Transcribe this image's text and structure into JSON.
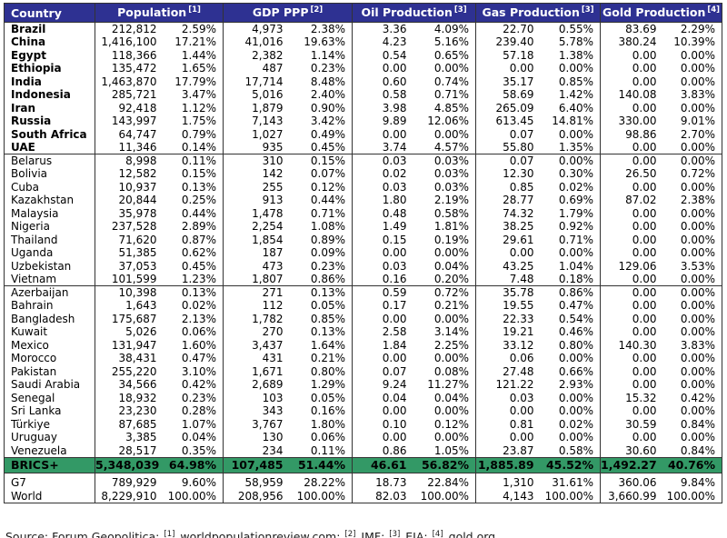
{
  "colors": {
    "header_bg": "#2E3192",
    "header_text": "#FFFFFF",
    "brics_row_bg": "#339966",
    "border": "#333333"
  },
  "chart_data": {
    "type": "table",
    "title": "BRICS+ vs G7 vs World statistics table",
    "columns": [
      {
        "label": "Country",
        "ref": null
      },
      {
        "label": "Population",
        "ref": "[1]"
      },
      {
        "label": "GDP PPP",
        "ref": "[2]"
      },
      {
        "label": "Oil Production",
        "ref": "[3]"
      },
      {
        "label": "Gas Production",
        "ref": "[3]"
      },
      {
        "label": "Gold Production",
        "ref": "[4]"
      }
    ],
    "subcolumns_per_group": [
      "value",
      "percent"
    ],
    "groups": [
      {
        "id": "brics-members",
        "bold_country": true,
        "rows": [
          {
            "country": "Brazil",
            "values": [
              "212,812",
              "2.59%",
              "4,973",
              "2.38%",
              "3.36",
              "4.09%",
              "22.70",
              "0.55%",
              "83.69",
              "2.29%"
            ]
          },
          {
            "country": "China",
            "values": [
              "1,416,100",
              "17.21%",
              "41,016",
              "19.63%",
              "4.23",
              "5.16%",
              "239.40",
              "5.78%",
              "380.24",
              "10.39%"
            ]
          },
          {
            "country": "Egypt",
            "values": [
              "118,366",
              "1.44%",
              "2,382",
              "1.14%",
              "0.54",
              "0.65%",
              "57.18",
              "1.38%",
              "0.00",
              "0.00%"
            ]
          },
          {
            "country": "Ethiopia",
            "values": [
              "135,472",
              "1.65%",
              "487",
              "0.23%",
              "0.00",
              "0.00%",
              "0.00",
              "0.00%",
              "0.00",
              "0.00%"
            ]
          },
          {
            "country": "India",
            "values": [
              "1,463,870",
              "17.79%",
              "17,714",
              "8.48%",
              "0.60",
              "0.74%",
              "35.17",
              "0.85%",
              "0.00",
              "0.00%"
            ]
          },
          {
            "country": "Indonesia",
            "values": [
              "285,721",
              "3.47%",
              "5,016",
              "2.40%",
              "0.58",
              "0.71%",
              "58.69",
              "1.42%",
              "140.08",
              "3.83%"
            ]
          },
          {
            "country": "Iran",
            "values": [
              "92,418",
              "1.12%",
              "1,879",
              "0.90%",
              "3.98",
              "4.85%",
              "265.09",
              "6.40%",
              "0.00",
              "0.00%"
            ]
          },
          {
            "country": "Russia",
            "values": [
              "143,997",
              "1.75%",
              "7,143",
              "3.42%",
              "9.89",
              "12.06%",
              "613.45",
              "14.81%",
              "330.00",
              "9.01%"
            ]
          },
          {
            "country": "South Africa",
            "values": [
              "64,747",
              "0.79%",
              "1,027",
              "0.49%",
              "0.00",
              "0.00%",
              "0.07",
              "0.00%",
              "98.86",
              "2.70%"
            ]
          },
          {
            "country": "UAE",
            "values": [
              "11,346",
              "0.14%",
              "935",
              "0.45%",
              "3.74",
              "4.57%",
              "55.80",
              "1.35%",
              "0.00",
              "0.00%"
            ]
          }
        ]
      },
      {
        "id": "partner-countries",
        "bold_country": false,
        "rows": [
          {
            "country": "Belarus",
            "values": [
              "8,998",
              "0.11%",
              "310",
              "0.15%",
              "0.03",
              "0.03%",
              "0.07",
              "0.00%",
              "0.00",
              "0.00%"
            ]
          },
          {
            "country": "Bolivia",
            "values": [
              "12,582",
              "0.15%",
              "142",
              "0.07%",
              "0.02",
              "0.03%",
              "12.30",
              "0.30%",
              "26.50",
              "0.72%"
            ]
          },
          {
            "country": "Cuba",
            "values": [
              "10,937",
              "0.13%",
              "255",
              "0.12%",
              "0.03",
              "0.03%",
              "0.85",
              "0.02%",
              "0.00",
              "0.00%"
            ]
          },
          {
            "country": "Kazakhstan",
            "values": [
              "20,844",
              "0.25%",
              "913",
              "0.44%",
              "1.80",
              "2.19%",
              "28.77",
              "0.69%",
              "87.02",
              "2.38%"
            ]
          },
          {
            "country": "Malaysia",
            "values": [
              "35,978",
              "0.44%",
              "1,478",
              "0.71%",
              "0.48",
              "0.58%",
              "74.32",
              "1.79%",
              "0.00",
              "0.00%"
            ]
          },
          {
            "country": "Nigeria",
            "values": [
              "237,528",
              "2.89%",
              "2,254",
              "1.08%",
              "1.49",
              "1.81%",
              "38.25",
              "0.92%",
              "0.00",
              "0.00%"
            ]
          },
          {
            "country": "Thailand",
            "values": [
              "71,620",
              "0.87%",
              "1,854",
              "0.89%",
              "0.15",
              "0.19%",
              "29.61",
              "0.71%",
              "0.00",
              "0.00%"
            ]
          },
          {
            "country": "Uganda",
            "values": [
              "51,385",
              "0.62%",
              "187",
              "0.09%",
              "0.00",
              "0.00%",
              "0.00",
              "0.00%",
              "0.00",
              "0.00%"
            ]
          },
          {
            "country": "Uzbekistan",
            "values": [
              "37,053",
              "0.45%",
              "473",
              "0.23%",
              "0.03",
              "0.04%",
              "43.25",
              "1.04%",
              "129.06",
              "3.53%"
            ]
          },
          {
            "country": "Vietnam",
            "values": [
              "101,599",
              "1.23%",
              "1,807",
              "0.86%",
              "0.16",
              "0.20%",
              "7.48",
              "0.18%",
              "0.00",
              "0.00%"
            ]
          }
        ]
      },
      {
        "id": "other-countries",
        "bold_country": false,
        "rows": [
          {
            "country": "Azerbaijan",
            "values": [
              "10,398",
              "0.13%",
              "271",
              "0.13%",
              "0.59",
              "0.72%",
              "35.78",
              "0.86%",
              "0.00",
              "0.00%"
            ]
          },
          {
            "country": "Bahrain",
            "values": [
              "1,643",
              "0.02%",
              "112",
              "0.05%",
              "0.17",
              "0.21%",
              "19.55",
              "0.47%",
              "0.00",
              "0.00%"
            ]
          },
          {
            "country": "Bangladesh",
            "values": [
              "175,687",
              "2.13%",
              "1,782",
              "0.85%",
              "0.00",
              "0.00%",
              "22.33",
              "0.54%",
              "0.00",
              "0.00%"
            ]
          },
          {
            "country": "Kuwait",
            "values": [
              "5,026",
              "0.06%",
              "270",
              "0.13%",
              "2.58",
              "3.14%",
              "19.21",
              "0.46%",
              "0.00",
              "0.00%"
            ]
          },
          {
            "country": "Mexico",
            "values": [
              "131,947",
              "1.60%",
              "3,437",
              "1.64%",
              "1.84",
              "2.25%",
              "33.12",
              "0.80%",
              "140.30",
              "3.83%"
            ]
          },
          {
            "country": "Morocco",
            "values": [
              "38,431",
              "0.47%",
              "431",
              "0.21%",
              "0.00",
              "0.00%",
              "0.06",
              "0.00%",
              "0.00",
              "0.00%"
            ]
          },
          {
            "country": "Pakistan",
            "values": [
              "255,220",
              "3.10%",
              "1,671",
              "0.80%",
              "0.07",
              "0.08%",
              "27.48",
              "0.66%",
              "0.00",
              "0.00%"
            ]
          },
          {
            "country": "Saudi Arabia",
            "values": [
              "34,566",
              "0.42%",
              "2,689",
              "1.29%",
              "9.24",
              "11.27%",
              "121.22",
              "2.93%",
              "0.00",
              "0.00%"
            ]
          },
          {
            "country": "Senegal",
            "values": [
              "18,932",
              "0.23%",
              "103",
              "0.05%",
              "0.04",
              "0.04%",
              "0.03",
              "0.00%",
              "15.32",
              "0.42%"
            ]
          },
          {
            "country": "Sri Lanka",
            "values": [
              "23,230",
              "0.28%",
              "343",
              "0.16%",
              "0.00",
              "0.00%",
              "0.00",
              "0.00%",
              "0.00",
              "0.00%"
            ]
          },
          {
            "country": "Türkiye",
            "values": [
              "87,685",
              "1.07%",
              "3,767",
              "1.80%",
              "0.10",
              "0.12%",
              "0.81",
              "0.02%",
              "30.59",
              "0.84%"
            ]
          },
          {
            "country": "Uruguay",
            "values": [
              "3,385",
              "0.04%",
              "130",
              "0.06%",
              "0.00",
              "0.00%",
              "0.00",
              "0.00%",
              "0.00",
              "0.00%"
            ]
          },
          {
            "country": "Venezuela",
            "values": [
              "28,517",
              "0.35%",
              "234",
              "0.11%",
              "0.86",
              "1.05%",
              "23.87",
              "0.58%",
              "30.60",
              "0.84%"
            ]
          }
        ]
      }
    ],
    "total_row": {
      "country": "BRICS+",
      "values": [
        "5,348,039",
        "64.98%",
        "107,485",
        "51.44%",
        "46.61",
        "56.82%",
        "1,885.89",
        "45.52%",
        "1,492.27",
        "40.76%"
      ]
    },
    "comparison_rows": [
      {
        "country": "G7",
        "values": [
          "789,929",
          "9.60%",
          "58,959",
          "28.22%",
          "18.73",
          "22.84%",
          "1,310",
          "31.61%",
          "360.06",
          "9.84%"
        ]
      },
      {
        "country": "World",
        "values": [
          "8,229,910",
          "100.00%",
          "208,956",
          "100.00%",
          "82.03",
          "100.00%",
          "4,143",
          "100.00%",
          "3,660.99",
          "100.00%"
        ]
      }
    ]
  },
  "footer": {
    "prefix": "Source: Forum Geopolitica; ",
    "refs": [
      {
        "sup": "[1]",
        "text": " worldpopulationreview.com; "
      },
      {
        "sup": "[2]",
        "text": " IMF; "
      },
      {
        "sup": "[3]",
        "text": " EIA; "
      },
      {
        "sup": "[4]",
        "text": " gold.org"
      }
    ]
  }
}
